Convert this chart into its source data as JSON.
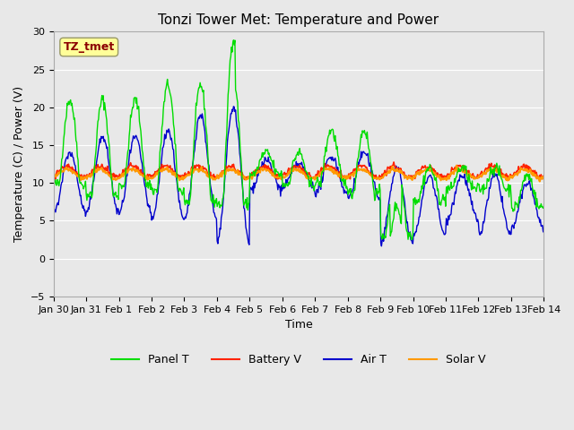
{
  "title": "Tonzi Tower Met: Temperature and Power",
  "xlabel": "Time",
  "ylabel": "Temperature (C) / Power (V)",
  "ylim": [
    -5,
    30
  ],
  "yticks": [
    -5,
    0,
    5,
    10,
    15,
    20,
    25,
    30
  ],
  "bg_color": "#e8e8e8",
  "plot_bg_color": "#e8e8e8",
  "annotation_text": "TZ_tmet",
  "annotation_color": "#8b0000",
  "annotation_bg": "#ffff99",
  "legend_labels": [
    "Panel T",
    "Battery V",
    "Air T",
    "Solar V"
  ],
  "legend_colors": [
    "#00dd00",
    "#ff2200",
    "#0000cc",
    "#ff9900"
  ],
  "line_colors": {
    "panel_t": "#00dd00",
    "battery_v": "#ff2200",
    "air_t": "#0000cc",
    "solar_v": "#ff9900"
  },
  "x_tick_labels": [
    "Jan 30",
    "Jan 31",
    "Feb 1",
    "Feb 2",
    "Feb 3",
    "Feb 4",
    "Feb 5",
    "Feb 6",
    "Feb 7",
    "Feb 8",
    "Feb 9",
    "Feb 10",
    "Feb 11",
    "Feb 12",
    "Feb 13",
    "Feb 14"
  ],
  "x_tick_positions": [
    0,
    1,
    2,
    3,
    4,
    5,
    6,
    7,
    8,
    9,
    10,
    11,
    12,
    13,
    14,
    15
  ]
}
